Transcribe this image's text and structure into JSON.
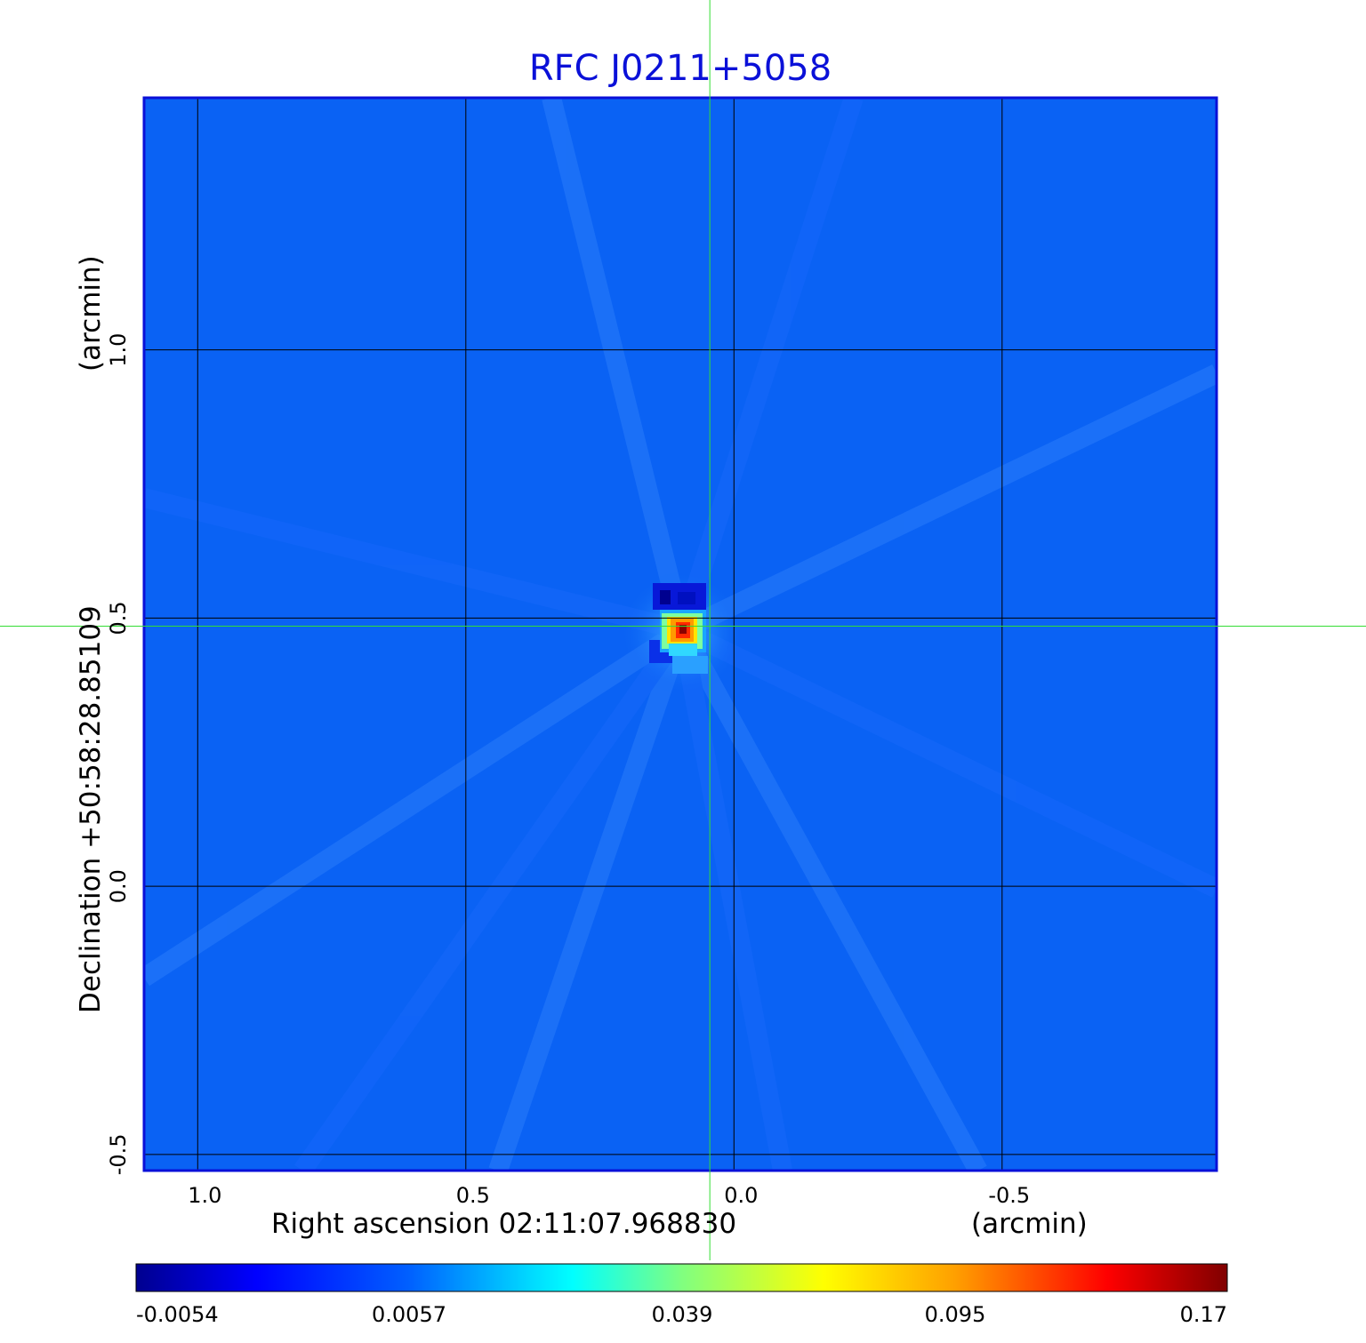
{
  "chart_data": {
    "type": "heatmap",
    "title": "RFC J0211+5058",
    "xlabel": "Right ascension  02:11:07.968830",
    "xunit": "(arcmin)",
    "ylabel": "Declination  +50:58:28.85109",
    "yunit": "(arcmin)",
    "xlim": [
      1.1,
      -0.9
    ],
    "ylim": [
      -0.53,
      1.47
    ],
    "xticks": [
      {
        "value": 1.0,
        "label": "1.0"
      },
      {
        "value": 0.5,
        "label": "0.5"
      },
      {
        "value": 0.0,
        "label": "0.0"
      },
      {
        "value": -0.5,
        "label": "-0.5"
      }
    ],
    "yticks": [
      {
        "value": 1.0,
        "label": "1.0"
      },
      {
        "value": 0.5,
        "label": "0.5"
      },
      {
        "value": 0.0,
        "label": "0.0"
      },
      {
        "value": -0.5,
        "label": "-0.5"
      }
    ],
    "grid": true,
    "crosshair": {
      "x": 0.045,
      "y": 0.485
    },
    "source_peak": {
      "x": 0.045,
      "y": 0.485,
      "value": 0.17
    },
    "colorbar": {
      "ticks": [
        {
          "value": -0.0054,
          "label": "-0.0054"
        },
        {
          "value": 0.0057,
          "label": "0.0057"
        },
        {
          "value": 0.039,
          "label": "0.039"
        },
        {
          "value": 0.095,
          "label": "0.095"
        },
        {
          "value": 0.17,
          "label": "0.17"
        }
      ],
      "colormap": "jet"
    },
    "colors": {
      "title": "#0a10d8",
      "frame": "#0a10d8",
      "background_emission": "#0a62f4",
      "grid": "#000000",
      "crosshair": "#33dd33"
    }
  }
}
